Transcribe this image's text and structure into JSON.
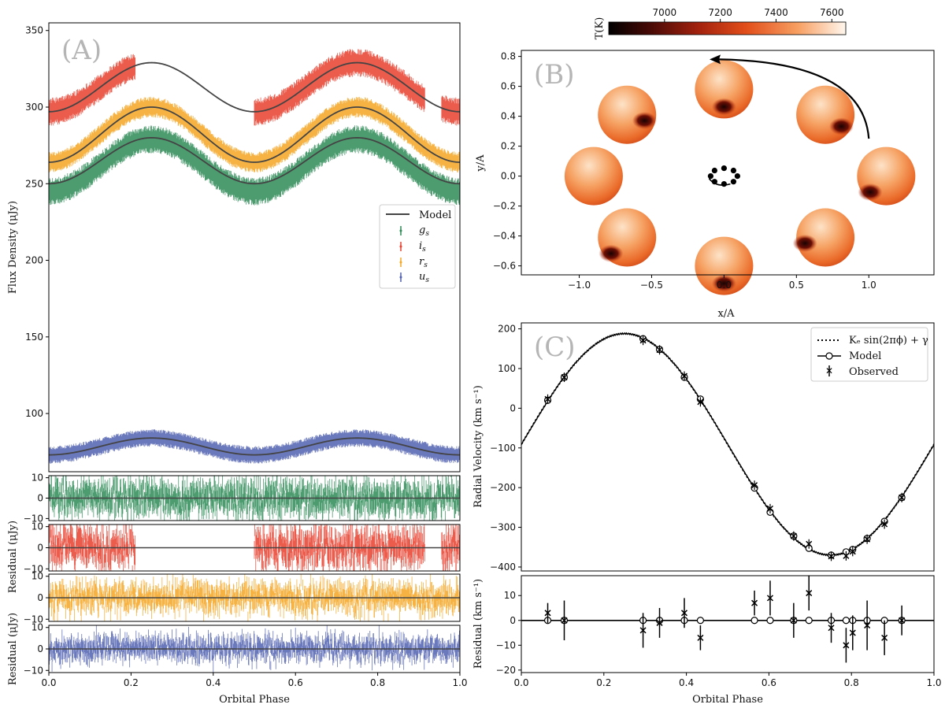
{
  "chart_data": [
    {
      "panel": "A",
      "type": "line",
      "panel_label": "(A)",
      "xlabel": "",
      "ylabel": "Flux Density (μJy)",
      "xlim": [
        0,
        1
      ],
      "ylim": [
        62,
        355
      ],
      "yticks": [
        100,
        150,
        200,
        250,
        300,
        350
      ],
      "legend": {
        "position": "right",
        "entries": [
          "Model",
          "g_s",
          "i_s",
          "r_s",
          "u_s"
        ]
      },
      "series": [
        {
          "name": "i_s",
          "color": "#e8402e",
          "base": 313,
          "amp_ellipsoidal": 16,
          "amp_doppler": 0,
          "phase_coverage": [
            [
              0.0,
              0.21
            ],
            [
              0.5,
              0.915
            ],
            [
              0.955,
              1.0
            ]
          ],
          "noise": 4
        },
        {
          "name": "r_s",
          "color": "#f5a623",
          "base": 282,
          "amp_ellipsoidal": 18,
          "amp_doppler": 0,
          "phase_coverage": [
            [
              0.0,
              1.0
            ]
          ],
          "noise": 3
        },
        {
          "name": "g_s",
          "color": "#2e8b57",
          "base": 262,
          "amp_ellipsoidal": 17,
          "amp_doppler": 0,
          "phase_coverage": [
            [
              0.0,
              1.0
            ]
          ],
          "noise": 4
        },
        {
          "name": "u_s",
          "color": "#5060b0",
          "base": 78.5,
          "amp_ellipsoidal": 5.5,
          "amp_doppler": 0,
          "phase_coverage": [
            [
              0.0,
              1.0
            ]
          ],
          "noise": 2.5
        }
      ],
      "model_color": "#444444",
      "model_curves": [
        {
          "band": "i_s",
          "base": 313,
          "amp_ellipsoidal": 16
        },
        {
          "band": "r_s",
          "base": 282,
          "amp_ellipsoidal": 18
        },
        {
          "band": "g_s",
          "base": 265,
          "amp_ellipsoidal": 15
        },
        {
          "band": "u_s",
          "base": 78.5,
          "amp_ellipsoidal": 5.5
        }
      ]
    },
    {
      "panel": "A-residuals",
      "type": "scatter",
      "xlabel": "Orbital Phase",
      "ylabel": "Residual (μJy)",
      "xlim": [
        0,
        1
      ],
      "ylim": [
        -11,
        11
      ],
      "yticks": [
        -10,
        0,
        10
      ],
      "xticks": [
        0.0,
        0.2,
        0.4,
        0.6,
        0.8,
        1.0
      ],
      "xtick_labels": [
        "0.0",
        "0.2",
        "0.4",
        "0.6",
        "0.8",
        "1.0"
      ],
      "rows": [
        {
          "band": "g_s",
          "color": "#2e8b57",
          "scatter": 3.8,
          "coverage": [
            [
              0.0,
              1.0
            ]
          ]
        },
        {
          "band": "i_s",
          "color": "#e8402e",
          "scatter": 4.2,
          "coverage": [
            [
              0.0,
              0.21
            ],
            [
              0.5,
              0.915
            ],
            [
              0.955,
              1.0
            ]
          ]
        },
        {
          "band": "r_s",
          "color": "#f5a623",
          "scatter": 3.0,
          "coverage": [
            [
              0.0,
              1.0
            ]
          ]
        },
        {
          "band": "u_s",
          "color": "#5060b0",
          "scatter": 2.5,
          "coverage": [
            [
              0.0,
              1.0
            ]
          ]
        }
      ]
    },
    {
      "panel": "B",
      "type": "scatter",
      "panel_label": "(B)",
      "xlabel": "x/A",
      "ylabel": "y/A",
      "xlim": [
        -1.4,
        1.45
      ],
      "ylim": [
        -0.66,
        0.84
      ],
      "xticks": [
        -1.0,
        -0.5,
        0.0,
        0.5,
        1.0
      ],
      "xtick_labels": [
        "−1.0",
        "−0.5",
        "0.0",
        "0.5",
        "1.0"
      ],
      "yticks": [
        -0.6,
        -0.4,
        -0.2,
        0.0,
        0.2,
        0.4,
        0.6,
        0.8
      ],
      "ytick_labels": [
        "−0.6",
        "−0.4",
        "−0.2",
        "0.0",
        "0.2",
        "0.4",
        "0.6",
        "0.8"
      ],
      "colorbar": {
        "label": "T(K)",
        "ticks": [
          7000,
          7200,
          7400,
          7600
        ],
        "range": [
          6800,
          7650
        ]
      },
      "stars": [
        {
          "x": 1.12,
          "y": 0.0,
          "spot": "lower-left"
        },
        {
          "x": 0.7,
          "y": 0.41,
          "spot": "lower-right"
        },
        {
          "x": 0.0,
          "y": 0.58,
          "spot": "bottom"
        },
        {
          "x": -0.67,
          "y": 0.41,
          "spot": "right"
        },
        {
          "x": -0.9,
          "y": 0.0,
          "spot": "none"
        },
        {
          "x": -0.67,
          "y": -0.41,
          "spot": "lower-left"
        },
        {
          "x": 0.0,
          "y": -0.6,
          "spot": "bottom"
        },
        {
          "x": 0.7,
          "y": -0.41,
          "spot": "left"
        }
      ],
      "companion_orbit": {
        "x": 0.0,
        "y": 0.0,
        "radius": 0.06
      },
      "arrow": {
        "from": [
          1.0,
          0.25
        ],
        "to": [
          -0.1,
          0.78
        ]
      }
    },
    {
      "panel": "C",
      "type": "line",
      "panel_label": "(C)",
      "xlabel": "",
      "ylabel": "Radial Velocity (km s⁻¹)",
      "xlim": [
        0,
        1
      ],
      "ylim": [
        -410,
        215
      ],
      "yticks": [
        -400,
        -300,
        -200,
        -100,
        0,
        100,
        200
      ],
      "ytick_labels": [
        "−400",
        "−300",
        "−200",
        "−100",
        "0",
        "100",
        "200"
      ],
      "K": 279,
      "gamma": -91,
      "legend": {
        "position": "top-right",
        "entries": [
          "Kₑ sin(2πϕ) + γ",
          "Model",
          "Observed"
        ]
      },
      "model_points": [
        {
          "phase": 0.064,
          "rv": 20
        },
        {
          "phase": 0.104,
          "rv": 78
        },
        {
          "phase": 0.295,
          "rv": 175
        },
        {
          "phase": 0.335,
          "rv": 148
        },
        {
          "phase": 0.395,
          "rv": 78
        },
        {
          "phase": 0.434,
          "rv": 23
        },
        {
          "phase": 0.565,
          "rv": -201
        },
        {
          "phase": 0.603,
          "rv": -262
        },
        {
          "phase": 0.66,
          "rv": -322
        },
        {
          "phase": 0.697,
          "rv": -353
        },
        {
          "phase": 0.751,
          "rv": -370
        },
        {
          "phase": 0.787,
          "rv": -362
        },
        {
          "phase": 0.803,
          "rv": -356
        },
        {
          "phase": 0.838,
          "rv": -328
        },
        {
          "phase": 0.88,
          "rv": -285
        },
        {
          "phase": 0.922,
          "rv": -225
        }
      ],
      "observed": [
        {
          "phase": 0.064,
          "rv": 23
        },
        {
          "phase": 0.104,
          "rv": 78
        },
        {
          "phase": 0.295,
          "rv": 171
        },
        {
          "phase": 0.335,
          "rv": 147
        },
        {
          "phase": 0.395,
          "rv": 81
        },
        {
          "phase": 0.434,
          "rv": 16
        },
        {
          "phase": 0.565,
          "rv": -194
        },
        {
          "phase": 0.603,
          "rv": -253
        },
        {
          "phase": 0.66,
          "rv": -322
        },
        {
          "phase": 0.697,
          "rv": -342
        },
        {
          "phase": 0.751,
          "rv": -373
        },
        {
          "phase": 0.787,
          "rv": -372
        },
        {
          "phase": 0.803,
          "rv": -361
        },
        {
          "phase": 0.838,
          "rv": -330
        },
        {
          "phase": 0.88,
          "rv": -292
        },
        {
          "phase": 0.922,
          "rv": -225
        }
      ]
    },
    {
      "panel": "C-residuals",
      "type": "scatter",
      "xlabel": "Orbital Phase",
      "ylabel": "Residual (km s⁻¹)",
      "xlim": [
        0,
        1
      ],
      "ylim": [
        -21,
        18
      ],
      "yticks": [
        -20,
        -10,
        0,
        10
      ],
      "ytick_labels": [
        "−20",
        "−10",
        "0",
        "10"
      ],
      "xticks": [
        0.0,
        0.2,
        0.4,
        0.6,
        0.8,
        1.0
      ],
      "xtick_labels": [
        "0.0",
        "0.2",
        "0.4",
        "0.6",
        "0.8",
        "1.0"
      ],
      "points": [
        {
          "phase": 0.064,
          "res": 3,
          "err": 4
        },
        {
          "phase": 0.104,
          "res": 0,
          "err": 8
        },
        {
          "phase": 0.295,
          "res": -4,
          "err": 7
        },
        {
          "phase": 0.335,
          "res": -1,
          "err": 6
        },
        {
          "phase": 0.395,
          "res": 3,
          "err": 6
        },
        {
          "phase": 0.434,
          "res": -7,
          "err": 5
        },
        {
          "phase": 0.565,
          "res": 7,
          "err": 5
        },
        {
          "phase": 0.603,
          "res": 9,
          "err": 7
        },
        {
          "phase": 0.66,
          "res": 0,
          "err": 7
        },
        {
          "phase": 0.697,
          "res": 11,
          "err": 7
        },
        {
          "phase": 0.751,
          "res": -3,
          "err": 6
        },
        {
          "phase": 0.787,
          "res": -10,
          "err": 7
        },
        {
          "phase": 0.803,
          "res": -5,
          "err": 7
        },
        {
          "phase": 0.838,
          "res": -2,
          "err": 10
        },
        {
          "phase": 0.88,
          "res": -7,
          "err": 7
        },
        {
          "phase": 0.922,
          "res": 0,
          "err": 6
        }
      ]
    }
  ],
  "labels": {
    "panelA": "(A)",
    "panelB": "(B)",
    "panelC": "(C)",
    "fluxYLabel": "Flux Density (μJy)",
    "residualLabelA1": "Residual (μJy)",
    "residualLabelA2": "Residual (μJy)",
    "orbitalPhase": "Orbital Phase",
    "orbitalPhaseC": "Orbital Phase",
    "xA": "x/A",
    "yA": "y/A",
    "rvYLabel": "Radial Velocity (km s⁻¹)",
    "rvResLabel": "Residual (km s⁻¹)",
    "tk": "T(K)",
    "legendModel": "Model",
    "legendG": "g",
    "legendI": "i",
    "legendR": "r",
    "legendU": "u",
    "legendSub": "s",
    "rvLegendSine": "Kₑ sin(2πϕ) + γ",
    "rvLegendModel": "Model",
    "rvLegendObs": "Observed"
  },
  "colors": {
    "g": "#2e8b57",
    "i": "#e8402e",
    "r": "#f5a623",
    "u": "#5060b0",
    "model": "#444444"
  }
}
